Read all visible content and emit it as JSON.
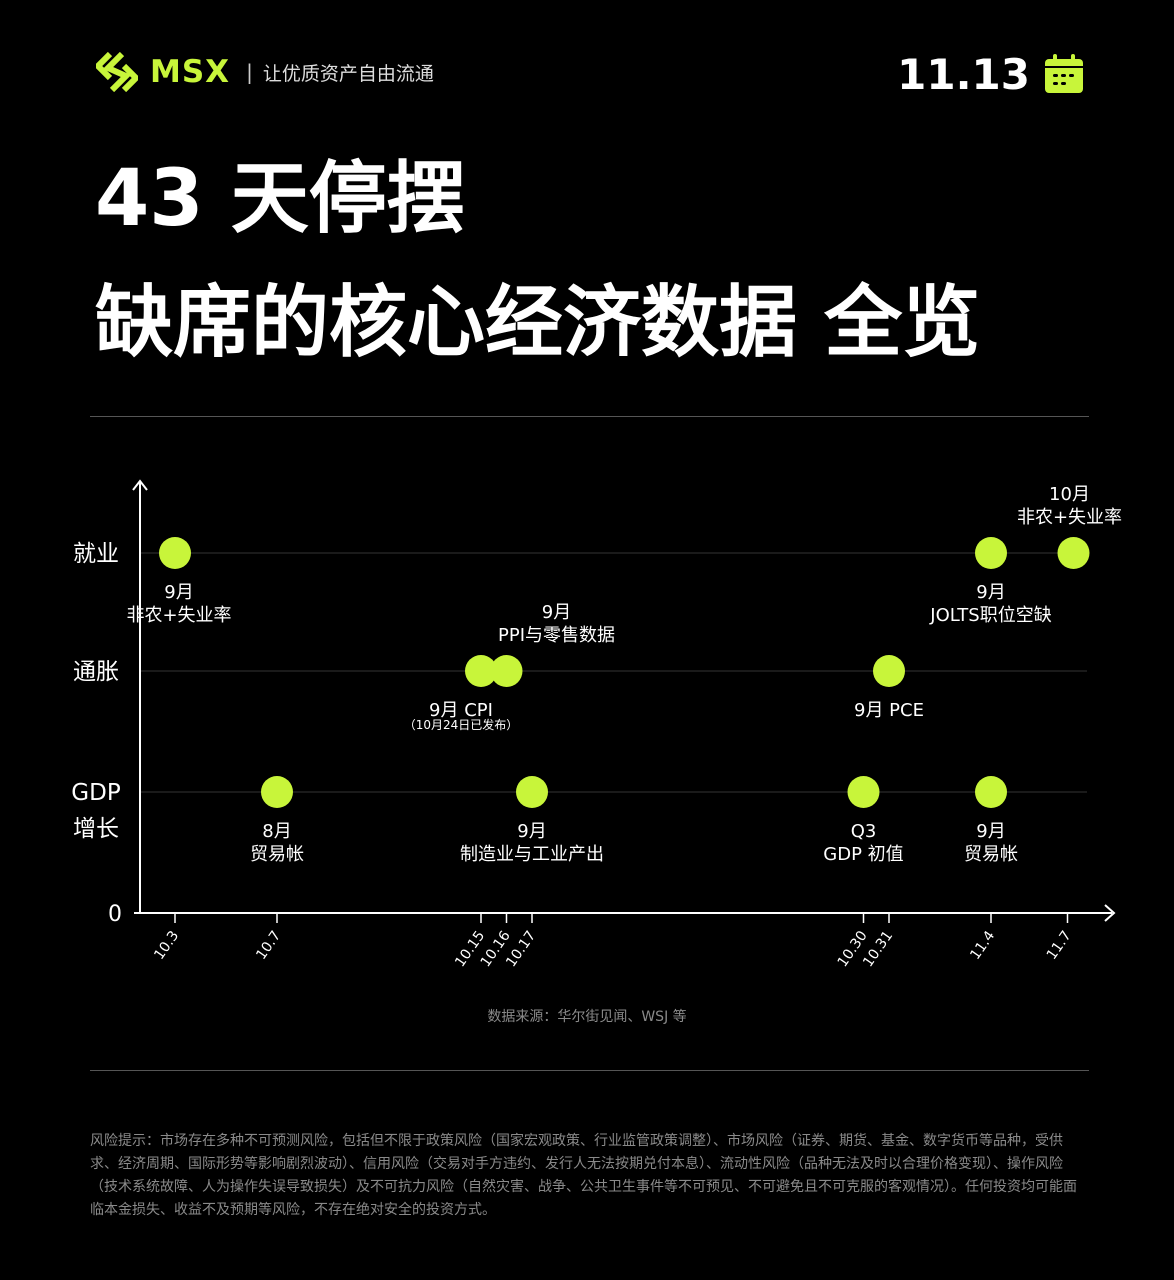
{
  "header": {
    "brand": "MSX",
    "separator": "|",
    "slogan": "让优质资产自由流通",
    "date": "11.13",
    "calendar_icon": "calendar-icon",
    "accent_color": "#c8f53a"
  },
  "title": {
    "line1": "43 天停摆",
    "line2": "缺席的核心经济数据 全览"
  },
  "chart_data": {
    "type": "scatter",
    "title": "",
    "xlabel": "",
    "ylabel": "",
    "origin_label": "0",
    "categories": [
      "就业",
      "通胀",
      "GDP\n增长"
    ],
    "x_ticks": [
      "10.3",
      "10.7",
      "10.15",
      "10.16",
      "10.17",
      "10.30",
      "10.31",
      "11.4",
      "11.7"
    ],
    "grid": true,
    "point_color": "#c8f53a",
    "events": [
      {
        "category": "就业",
        "date": "10.3",
        "label": [
          "9月",
          "非农+失业率"
        ],
        "label_position": "below"
      },
      {
        "category": "就业",
        "date": "11.4",
        "label": [
          "9月",
          "JOLTS职位空缺"
        ],
        "label_position": "below"
      },
      {
        "category": "就业",
        "date": "11.7",
        "label": [
          "10月",
          "非农+失业率"
        ],
        "label_position": "above"
      },
      {
        "category": "通胀",
        "date": "10.15",
        "label": [
          "9月 CPI",
          "（10月24日已发布）"
        ],
        "label_position": "below"
      },
      {
        "category": "通胀",
        "date": "10.16",
        "label": [
          "9月",
          "PPI与零售数据"
        ],
        "label_position": "above"
      },
      {
        "category": "通胀",
        "date": "10.31",
        "label": [
          "9月 PCE"
        ],
        "label_position": "below"
      },
      {
        "category": "GDP\n增长",
        "date": "10.7",
        "label": [
          "8月",
          "贸易帐"
        ],
        "label_position": "below"
      },
      {
        "category": "GDP\n增长",
        "date": "10.17",
        "label": [
          "9月",
          "制造业与工业产出"
        ],
        "label_position": "below"
      },
      {
        "category": "GDP\n增长",
        "date": "10.30",
        "label": [
          "Q3",
          "GDP 初值"
        ],
        "label_position": "below"
      },
      {
        "category": "GDP\n增长",
        "date": "11.4",
        "label": [
          "9月",
          "贸易帐"
        ],
        "label_position": "below"
      }
    ]
  },
  "source": "数据来源：华尔街见闻、WSJ 等",
  "risk_notice": "风险提示：市场存在多种不可预测风险，包括但不限于政策风险（国家宏观政策、行业监管政策调整）、市场风险（证券、期货、基金、数字货币等品种，受供求、经济周期、国际形势等影响剧烈波动）、信用风险（交易对手方违约、发行人无法按期兑付本息）、流动性风险（品种无法及时以合理价格变现）、操作风险（技术系统故障、人为操作失误导致损失）及不可抗力风险（自然灾害、战争、公共卫生事件等不可预见、不可避免且不可克服的客观情况）。任何投资均可能面临本金损失、收益不及预期等风险，不存在绝对安全的投资方式。"
}
